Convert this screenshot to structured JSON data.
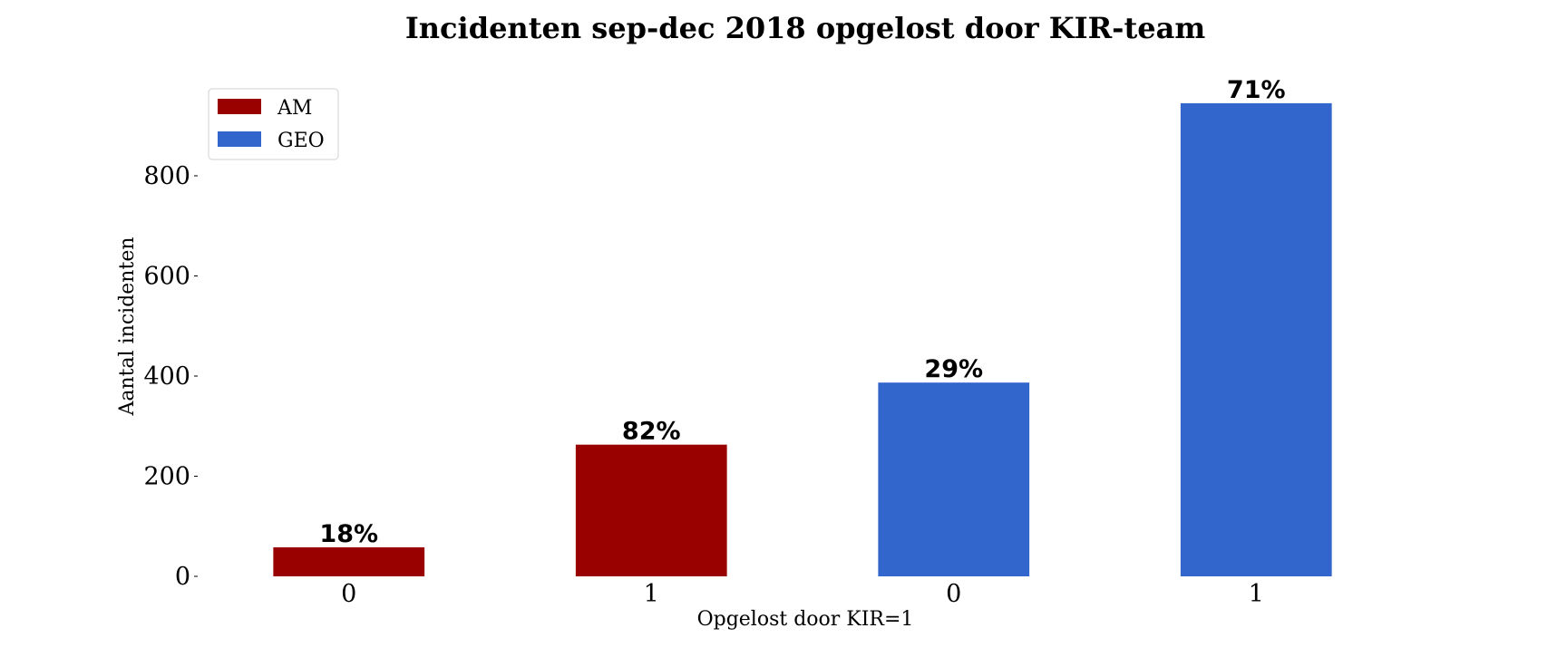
{
  "chart_data": {
    "type": "bar",
    "title": "Incidenten sep-dec 2018 opgelost door KIR-team",
    "xlabel": "Opgelost door KIR=1",
    "ylabel": "Aantal incidenten",
    "ylim": [
      0,
      980
    ],
    "yticks": [
      0,
      200,
      400,
      600,
      800
    ],
    "grid": false,
    "legend_position": "top-left",
    "categories": [
      "0",
      "1",
      "0",
      "1"
    ],
    "values": [
      58,
      263,
      387,
      945
    ],
    "data_labels": [
      "18%",
      "82%",
      "29%",
      "71%"
    ],
    "bar_series": [
      "AM",
      "AM",
      "GEO",
      "GEO"
    ],
    "series": [
      {
        "name": "AM",
        "color": "#990000"
      },
      {
        "name": "GEO",
        "color": "#3366cc"
      }
    ]
  }
}
